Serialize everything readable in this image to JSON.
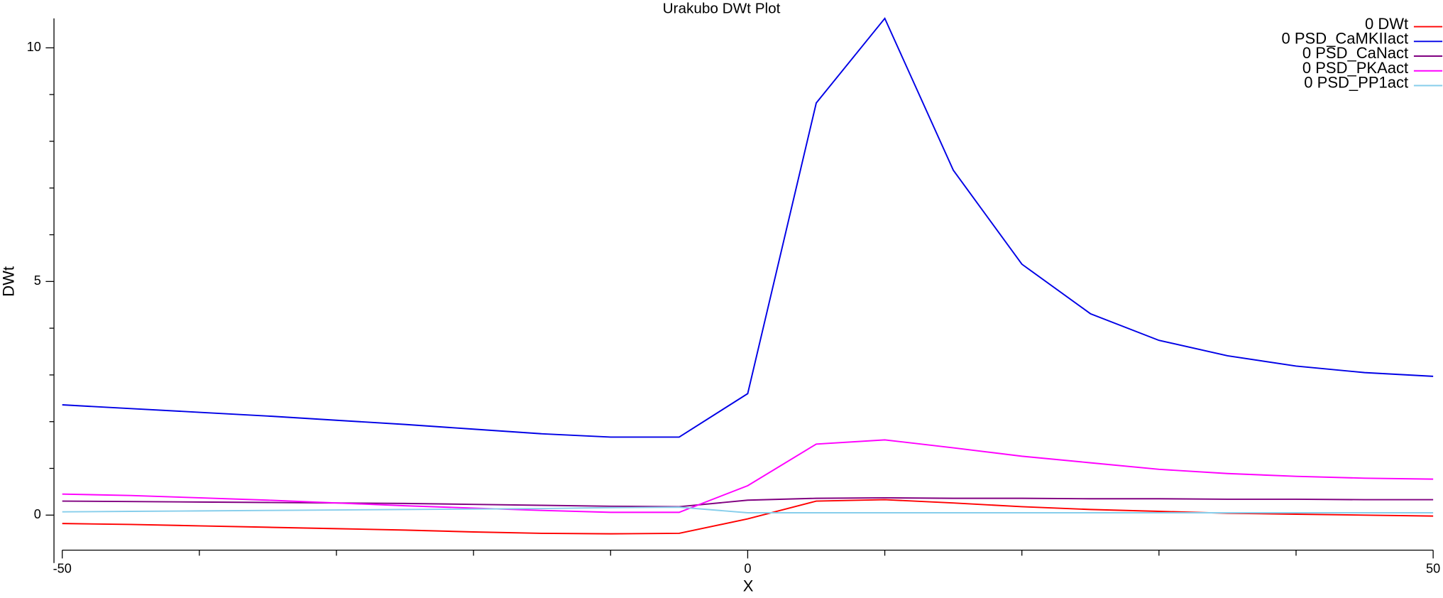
{
  "chart_data": {
    "type": "line",
    "title": "Urakubo DWt Plot",
    "x_label": "X",
    "y_label": "DWt",
    "x": [
      -50,
      -45,
      -40,
      -35,
      -30,
      -25,
      -20,
      -15,
      -10,
      -5,
      0,
      5,
      10,
      15,
      20,
      25,
      30,
      35,
      40,
      45,
      50
    ],
    "xlim": [
      -50,
      50
    ],
    "xticks": [
      -50,
      0,
      50
    ],
    "xminorticks": [
      -40,
      -30,
      -20,
      -10,
      10,
      20,
      30,
      40
    ],
    "ylim": [
      -0.75,
      10.63
    ],
    "yticks": [
      0,
      5,
      10
    ],
    "yminorticks": [
      1,
      2,
      3,
      4,
      6,
      7,
      8,
      9
    ],
    "legend": "top-right",
    "grid": false,
    "series": [
      {
        "name": "0 DWt",
        "color": "#ff0000",
        "values": [
          -0.18,
          -0.2,
          -0.23,
          -0.26,
          -0.29,
          -0.32,
          -0.36,
          -0.39,
          -0.4,
          -0.39,
          -0.08,
          0.3,
          0.33,
          0.26,
          0.18,
          0.12,
          0.08,
          0.04,
          0.02,
          0,
          -0.02
        ]
      },
      {
        "name": "0 PSD_CaMKIIact",
        "color": "#0000e6",
        "values": [
          2.36,
          2.28,
          2.2,
          2.12,
          2.03,
          1.94,
          1.84,
          1.74,
          1.67,
          1.67,
          2.6,
          8.82,
          10.63,
          7.38,
          5.37,
          4.31,
          3.74,
          3.41,
          3.19,
          3.05,
          2.97
        ]
      },
      {
        "name": "0 PSD_CaNact",
        "color": "#800080",
        "values": [
          0.3,
          0.29,
          0.28,
          0.27,
          0.26,
          0.25,
          0.23,
          0.21,
          0.19,
          0.18,
          0.32,
          0.36,
          0.37,
          0.36,
          0.36,
          0.35,
          0.35,
          0.34,
          0.34,
          0.33,
          0.33
        ]
      },
      {
        "name": "0 PSD_PKAact",
        "color": "#ff00ff",
        "values": [
          0.45,
          0.42,
          0.37,
          0.32,
          0.26,
          0.2,
          0.15,
          0.1,
          0.06,
          0.06,
          0.63,
          1.52,
          1.61,
          1.44,
          1.26,
          1.12,
          0.98,
          0.89,
          0.83,
          0.79,
          0.77
        ]
      },
      {
        "name": "0 PSD_PP1act",
        "color": "#87ceeb",
        "values": [
          0.07,
          0.08,
          0.09,
          0.1,
          0.11,
          0.12,
          0.13,
          0.14,
          0.16,
          0.17,
          0.05,
          0.05,
          0.05,
          0.05,
          0.05,
          0.05,
          0.05,
          0.05,
          0.05,
          0.05,
          0.05
        ]
      }
    ]
  }
}
